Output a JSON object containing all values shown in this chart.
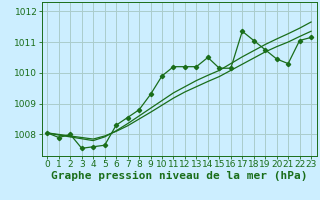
{
  "bg_color": "#cceeff",
  "plot_bg_color": "#cceeff",
  "grid_color": "#aacccc",
  "line_color": "#1a6e1a",
  "xlim": [
    -0.5,
    23.5
  ],
  "ylim": [
    1007.3,
    1012.3
  ],
  "yticks": [
    1008,
    1009,
    1010,
    1011,
    1012
  ],
  "xticks": [
    0,
    1,
    2,
    3,
    4,
    5,
    6,
    7,
    8,
    9,
    10,
    11,
    12,
    13,
    14,
    15,
    16,
    17,
    18,
    19,
    20,
    21,
    22,
    23
  ],
  "series1": [
    1008.05,
    1007.9,
    1008.0,
    1007.55,
    1007.6,
    1007.65,
    1008.3,
    1008.55,
    1008.8,
    1009.3,
    1009.9,
    1010.2,
    1010.2,
    1010.2,
    1010.5,
    1010.15,
    1010.15,
    1011.35,
    1011.05,
    1010.75,
    1010.45,
    1010.3,
    1011.05,
    1011.15
  ],
  "series2": [
    1008.05,
    1008.0,
    1007.95,
    1007.9,
    1007.85,
    1007.95,
    1008.1,
    1008.28,
    1008.5,
    1008.72,
    1008.95,
    1009.18,
    1009.38,
    1009.55,
    1009.72,
    1009.88,
    1010.08,
    1010.28,
    1010.48,
    1010.68,
    1010.85,
    1011.0,
    1011.18,
    1011.35
  ],
  "series3": [
    1008.05,
    1007.98,
    1007.92,
    1007.86,
    1007.8,
    1007.92,
    1008.12,
    1008.35,
    1008.6,
    1008.85,
    1009.1,
    1009.35,
    1009.55,
    1009.75,
    1009.92,
    1010.08,
    1010.3,
    1010.52,
    1010.72,
    1010.92,
    1011.1,
    1011.27,
    1011.45,
    1011.65
  ],
  "xlabel": "Graphe pression niveau de la mer (hPa)",
  "tick_fontsize": 6.5,
  "xlabel_fontsize": 8
}
